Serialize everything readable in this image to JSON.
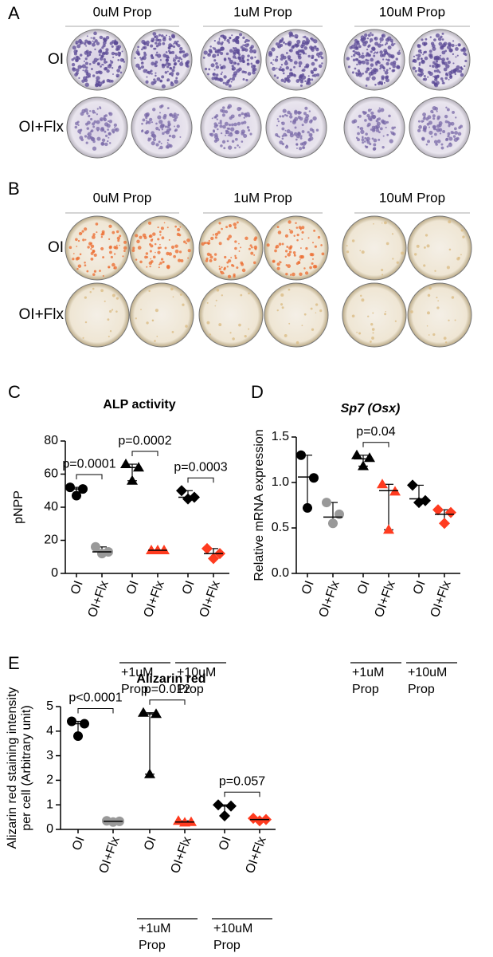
{
  "panel_a": {
    "label": "A",
    "columns": [
      "0uM Prop",
      "1uM Prop",
      "10uM Prop"
    ],
    "rows": [
      "OI",
      "OI+Flx"
    ]
  },
  "panel_b": {
    "label": "B",
    "columns": [
      "0uM Prop",
      "1uM Prop",
      "10uM Prop"
    ],
    "rows": [
      "OI",
      "OI+Flx"
    ]
  },
  "chart_data": [
    {
      "type": "dot",
      "panel": "C",
      "title": "ALP activity",
      "y_label": [
        "pNPP"
      ],
      "categories": [
        "OI",
        "OI+Flx",
        "OI",
        "OI+Flx",
        "OI",
        "OI+Flx"
      ],
      "dots": [
        {
          "color": "#000000",
          "marker": "circle",
          "values": [
            52,
            51,
            47
          ],
          "center": 51
        },
        {
          "color": "#999999",
          "marker": "circle",
          "values": [
            16,
            13,
            12
          ],
          "center": 13
        },
        {
          "color": "#000000",
          "marker": "triangle",
          "values": [
            66,
            64,
            56
          ],
          "center": 64
        },
        {
          "color": "#ff3b1f",
          "marker": "triangle",
          "values": [
            14,
            14,
            14
          ],
          "center": 14
        },
        {
          "color": "#000000",
          "marker": "diamond",
          "values": [
            50,
            46,
            45
          ],
          "center": 46
        },
        {
          "color": "#ff3b1f",
          "marker": "diamond",
          "values": [
            15,
            12,
            9
          ],
          "center": 12
        }
      ],
      "comparisons": [
        {
          "label": "p=0.0001",
          "categories": [
            0,
            1
          ]
        },
        {
          "label": "p=0.0002",
          "categories": [
            2,
            3
          ]
        },
        {
          "label": "p=0.0003",
          "categories": [
            4,
            5
          ]
        }
      ],
      "group_labels": [
        {
          "lines": [
            "+1uM",
            "Prop"
          ],
          "categories": [
            2,
            3
          ]
        },
        {
          "lines": [
            "+10uM",
            "Prop"
          ],
          "categories": [
            4,
            5
          ]
        }
      ],
      "ylim": [
        0,
        80
      ],
      "yticks": [
        0,
        20,
        40,
        60,
        80
      ]
    },
    {
      "type": "dot",
      "panel": "D",
      "title": "Sp7 (Osx)",
      "title_italic": true,
      "y_label": [
        "Relative mRNA expression"
      ],
      "categories": [
        "OI",
        "OI+Flx",
        "OI",
        "OI+Flx",
        "OI",
        "OI+Flx"
      ],
      "dots": [
        {
          "color": "#000000",
          "marker": "circle",
          "values": [
            1.3,
            1.05,
            0.72
          ],
          "center": 1.06
        },
        {
          "color": "#999999",
          "marker": "circle",
          "values": [
            0.78,
            0.65,
            0.55
          ],
          "center": 0.62
        },
        {
          "color": "#000000",
          "marker": "triangle",
          "values": [
            1.3,
            1.27,
            1.18
          ],
          "center": 1.26
        },
        {
          "color": "#ff3b1f",
          "marker": "triangle",
          "values": [
            0.98,
            0.9,
            0.48
          ],
          "center": 0.91
        },
        {
          "color": "#000000",
          "marker": "diamond",
          "values": [
            0.97,
            0.8,
            0.78
          ],
          "center": 0.82
        },
        {
          "color": "#ff3b1f",
          "marker": "diamond",
          "values": [
            0.7,
            0.67,
            0.55
          ],
          "center": 0.65
        }
      ],
      "comparisons": [
        {
          "label": "p=0.04",
          "categories": [
            2,
            3
          ]
        }
      ],
      "group_labels": [
        {
          "lines": [
            "+1uM",
            "Prop"
          ],
          "categories": [
            2,
            3
          ]
        },
        {
          "lines": [
            "+10uM",
            "Prop"
          ],
          "categories": [
            4,
            5
          ]
        }
      ],
      "ylim": [
        0,
        1.5
      ],
      "yticks": [
        {
          "value": 0,
          "label": "0.0"
        },
        0.5,
        {
          "value": 1,
          "label": "1.0"
        },
        {
          "value": 1.5,
          "label": "1.5"
        }
      ]
    },
    {
      "type": "dot",
      "panel": "E",
      "title": "Alizarin red",
      "y_label": [
        "Alizarin red staining intensity",
        "per cell (Arbitrary unit)"
      ],
      "categories": [
        "OI",
        "OI+Flx",
        "OI",
        "OI+Flx",
        "OI",
        "OI+Flx"
      ],
      "dots": [
        {
          "color": "#000000",
          "marker": "circle",
          "values": [
            4.4,
            4.3,
            3.8
          ],
          "center": 4.3
        },
        {
          "color": "#999999",
          "marker": "circle",
          "values": [
            0.35,
            0.33,
            0.3
          ],
          "center": 0.33
        },
        {
          "color": "#000000",
          "marker": "triangle",
          "values": [
            4.75,
            4.7,
            2.25
          ],
          "center": 4.7
        },
        {
          "color": "#ff3b1f",
          "marker": "triangle",
          "values": [
            0.35,
            0.3,
            0.28
          ],
          "center": 0.3
        },
        {
          "color": "#000000",
          "marker": "diamond",
          "values": [
            1.0,
            0.95,
            0.55
          ],
          "center": 0.95
        },
        {
          "color": "#ff3b1f",
          "marker": "diamond",
          "values": [
            0.45,
            0.4,
            0.35
          ],
          "center": 0.4
        }
      ],
      "comparisons": [
        {
          "label": "p<0.0001",
          "categories": [
            0,
            1
          ]
        },
        {
          "label": "p=0.012",
          "categories": [
            2,
            3
          ]
        },
        {
          "label": "p=0.057",
          "categories": [
            4,
            5
          ]
        }
      ],
      "group_labels": [
        {
          "lines": [
            "+1uM",
            "Prop"
          ],
          "categories": [
            2,
            3
          ]
        },
        {
          "lines": [
            "+10uM",
            "Prop"
          ],
          "categories": [
            4,
            5
          ]
        }
      ],
      "ylim": [
        0,
        5
      ],
      "yticks": [
        0,
        1,
        2,
        3,
        4,
        5
      ]
    }
  ]
}
